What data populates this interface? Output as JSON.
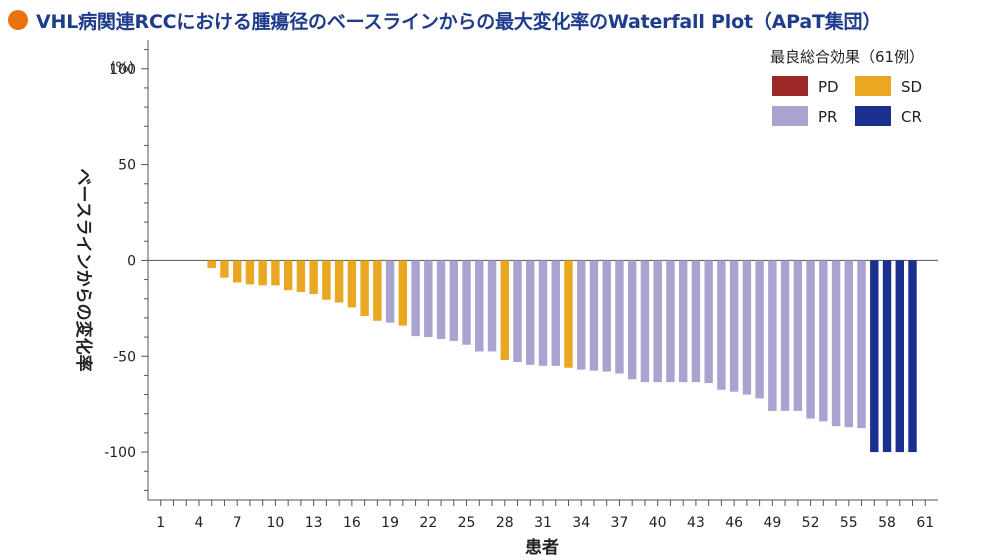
{
  "title": "VHL病関連RCCにおける腫瘍径のベースラインからの最大変化率のWaterfall Plot（APaT集団）",
  "colors": {
    "title_dot": "#e8730c",
    "title_text": "#1f3c8c",
    "PD": "#9b2727",
    "SD": "#e9a722",
    "PR": "#a9a3cf",
    "CR": "#1b2f8f"
  },
  "chart_data": {
    "type": "bar",
    "ylabel": "ベースラインからの変化率",
    "yunit": "(%)",
    "xlabel": "患者",
    "ylim": [
      -125,
      115
    ],
    "yticks": [
      100,
      50,
      0,
      -50,
      -100
    ],
    "xlim": [
      0,
      62
    ],
    "xticks": [
      1,
      4,
      7,
      10,
      13,
      16,
      19,
      22,
      25,
      28,
      31,
      34,
      37,
      40,
      43,
      46,
      49,
      52,
      55,
      58,
      61
    ],
    "legend": {
      "title": "最良総合効果（61例）",
      "entries": [
        "PD",
        "SD",
        "PR",
        "CR"
      ],
      "placement": "top-right"
    },
    "patients": [
      5,
      6,
      7,
      8,
      9,
      10,
      11,
      12,
      13,
      14,
      15,
      16,
      17,
      18,
      19,
      20,
      21,
      22,
      23,
      24,
      25,
      26,
      27,
      28,
      29,
      30,
      31,
      32,
      33,
      34,
      35,
      36,
      37,
      38,
      39,
      40,
      41,
      42,
      43,
      44,
      45,
      46,
      47,
      48,
      49,
      50,
      51,
      52,
      53,
      54,
      55,
      56,
      57,
      58,
      59,
      60
    ],
    "values": [
      -4,
      -9,
      -11.5,
      -12.5,
      -13,
      -13,
      -15.5,
      -16.5,
      -17.5,
      -20.5,
      -22,
      -24.5,
      -29,
      -31.5,
      -32.5,
      -34,
      -39.5,
      -40,
      -41,
      -42,
      -44,
      -47.5,
      -47.5,
      -52,
      -53,
      -54.5,
      -55,
      -55,
      -56,
      -57,
      -57.5,
      -58,
      -59,
      -62,
      -63.5,
      -63.5,
      -63.5,
      -63.5,
      -63.5,
      -64,
      -67.5,
      -68.5,
      -70,
      -72,
      -78.5,
      -78.5,
      -78.5,
      -82.5,
      -84,
      -86.5,
      -87,
      -87.5,
      -100,
      -100,
      -100,
      -100
    ],
    "responses": [
      "SD",
      "SD",
      "SD",
      "SD",
      "SD",
      "SD",
      "SD",
      "SD",
      "SD",
      "SD",
      "SD",
      "SD",
      "SD",
      "SD",
      "PR",
      "SD",
      "PR",
      "PR",
      "PR",
      "PR",
      "PR",
      "PR",
      "PR",
      "SD",
      "PR",
      "PR",
      "PR",
      "PR",
      "SD",
      "PR",
      "PR",
      "PR",
      "PR",
      "PR",
      "PR",
      "PR",
      "PR",
      "PR",
      "PR",
      "PR",
      "PR",
      "PR",
      "PR",
      "PR",
      "PR",
      "PR",
      "PR",
      "PR",
      "PR",
      "PR",
      "PR",
      "PR",
      "CR",
      "CR",
      "CR",
      "CR"
    ]
  }
}
